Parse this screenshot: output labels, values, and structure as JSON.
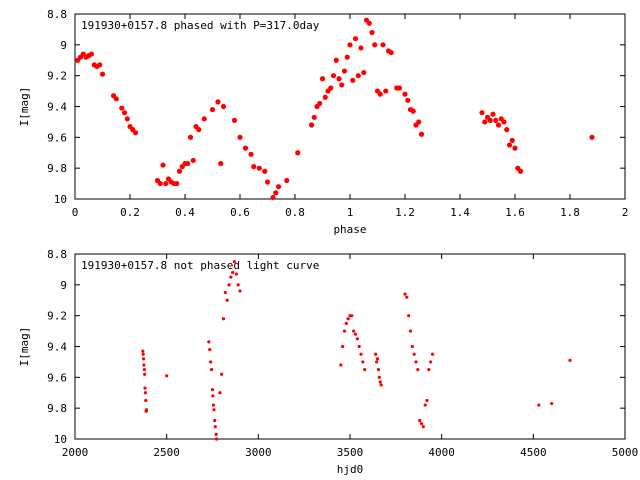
{
  "chart_data": [
    {
      "type": "scatter",
      "title": "191930+0157.8 phased with P=317.0day",
      "xlabel": "phase",
      "ylabel": "I[mag]",
      "xlim": [
        0,
        2
      ],
      "ylim": [
        8.8,
        10
      ],
      "y_inverted": true,
      "grid": false,
      "x_ticks": [
        "0",
        "0.2",
        "0.4",
        "0.6",
        "0.8",
        "1",
        "1.2",
        "1.4",
        "1.6",
        "1.8",
        "2"
      ],
      "y_ticks": [
        "8.8",
        "9",
        "9.2",
        "9.4",
        "9.6",
        "9.8",
        "10"
      ],
      "marker_color": "#ff0000",
      "series": [
        {
          "points": [
            [
              0.01,
              9.1
            ],
            [
              0.02,
              9.08
            ],
            [
              0.03,
              9.06
            ],
            [
              0.04,
              9.08
            ],
            [
              0.05,
              9.07
            ],
            [
              0.06,
              9.06
            ],
            [
              0.07,
              9.13
            ],
            [
              0.08,
              9.14
            ],
            [
              0.09,
              9.13
            ],
            [
              0.1,
              9.19
            ],
            [
              0.14,
              9.33
            ],
            [
              0.15,
              9.35
            ],
            [
              0.17,
              9.41
            ],
            [
              0.18,
              9.44
            ],
            [
              0.19,
              9.48
            ],
            [
              0.2,
              9.53
            ],
            [
              0.21,
              9.55
            ],
            [
              0.22,
              9.57
            ],
            [
              0.3,
              9.88
            ],
            [
              0.31,
              9.9
            ],
            [
              0.32,
              9.78
            ],
            [
              0.33,
              9.9
            ],
            [
              0.34,
              9.87
            ],
            [
              0.35,
              9.89
            ],
            [
              0.36,
              9.9
            ],
            [
              0.37,
              9.9
            ],
            [
              0.38,
              9.82
            ],
            [
              0.39,
              9.79
            ],
            [
              0.4,
              9.77
            ],
            [
              0.41,
              9.77
            ],
            [
              0.42,
              9.6
            ],
            [
              0.43,
              9.75
            ],
            [
              0.44,
              9.53
            ],
            [
              0.45,
              9.55
            ],
            [
              0.47,
              9.48
            ],
            [
              0.5,
              9.42
            ],
            [
              0.52,
              9.37
            ],
            [
              0.53,
              9.77
            ],
            [
              0.54,
              9.4
            ],
            [
              0.58,
              9.49
            ],
            [
              0.6,
              9.6
            ],
            [
              0.62,
              9.67
            ],
            [
              0.64,
              9.71
            ],
            [
              0.65,
              9.79
            ],
            [
              0.67,
              9.8
            ],
            [
              0.69,
              9.82
            ],
            [
              0.7,
              9.89
            ],
            [
              0.72,
              9.99
            ],
            [
              0.73,
              9.96
            ],
            [
              0.74,
              9.92
            ],
            [
              0.77,
              9.88
            ],
            [
              0.81,
              9.7
            ],
            [
              0.86,
              9.52
            ],
            [
              0.87,
              9.47
            ],
            [
              0.88,
              9.4
            ],
            [
              0.89,
              9.38
            ],
            [
              0.9,
              9.22
            ],
            [
              0.91,
              9.34
            ],
            [
              0.92,
              9.3
            ],
            [
              0.93,
              9.28
            ],
            [
              0.94,
              9.2
            ],
            [
              0.95,
              9.1
            ],
            [
              0.96,
              9.22
            ],
            [
              0.97,
              9.26
            ],
            [
              0.98,
              9.17
            ],
            [
              0.99,
              9.08
            ],
            [
              1.0,
              9.0
            ],
            [
              1.01,
              9.23
            ],
            [
              1.02,
              8.96
            ],
            [
              1.03,
              9.2
            ],
            [
              1.04,
              9.02
            ],
            [
              1.05,
              9.18
            ],
            [
              1.06,
              8.84
            ],
            [
              1.07,
              8.86
            ],
            [
              1.08,
              8.92
            ],
            [
              1.09,
              9.0
            ],
            [
              1.1,
              9.3
            ],
            [
              1.11,
              9.32
            ],
            [
              1.12,
              9.0
            ],
            [
              1.13,
              9.3
            ],
            [
              1.14,
              9.04
            ],
            [
              1.15,
              9.05
            ],
            [
              1.17,
              9.28
            ],
            [
              1.18,
              9.28
            ],
            [
              1.2,
              9.32
            ],
            [
              1.21,
              9.36
            ],
            [
              1.22,
              9.42
            ],
            [
              1.23,
              9.43
            ],
            [
              1.24,
              9.52
            ],
            [
              1.25,
              9.5
            ],
            [
              1.26,
              9.58
            ],
            [
              1.48,
              9.44
            ],
            [
              1.49,
              9.5
            ],
            [
              1.5,
              9.47
            ],
            [
              1.51,
              9.49
            ],
            [
              1.52,
              9.45
            ],
            [
              1.53,
              9.49
            ],
            [
              1.54,
              9.52
            ],
            [
              1.55,
              9.48
            ],
            [
              1.56,
              9.5
            ],
            [
              1.57,
              9.55
            ],
            [
              1.58,
              9.65
            ],
            [
              1.59,
              9.62
            ],
            [
              1.6,
              9.67
            ],
            [
              1.61,
              9.8
            ],
            [
              1.62,
              9.82
            ],
            [
              1.88,
              9.6
            ]
          ]
        }
      ]
    },
    {
      "type": "scatter",
      "title": "191930+0157.8 not phased light curve",
      "xlabel": "hjd0",
      "ylabel": "I[mag]",
      "xlim": [
        2000,
        5000
      ],
      "ylim": [
        8.8,
        10
      ],
      "y_inverted": true,
      "grid": false,
      "x_ticks": [
        "2000",
        "2500",
        "3000",
        "3500",
        "4000",
        "4500",
        "5000"
      ],
      "y_ticks": [
        "8.8",
        "9",
        "9.2",
        "9.4",
        "9.6",
        "9.8",
        "10"
      ],
      "marker_color": "#ff0000",
      "series": [
        {
          "points": [
            [
              2370,
              9.43
            ],
            [
              2372,
              9.45
            ],
            [
              2374,
              9.48
            ],
            [
              2376,
              9.52
            ],
            [
              2378,
              9.55
            ],
            [
              2380,
              9.58
            ],
            [
              2382,
              9.67
            ],
            [
              2384,
              9.7
            ],
            [
              2386,
              9.75
            ],
            [
              2388,
              9.82
            ],
            [
              2390,
              9.81
            ],
            [
              2500,
              9.59
            ],
            [
              2730,
              9.37
            ],
            [
              2735,
              9.42
            ],
            [
              2740,
              9.5
            ],
            [
              2745,
              9.55
            ],
            [
              2750,
              9.68
            ],
            [
              2752,
              9.72
            ],
            [
              2755,
              9.78
            ],
            [
              2758,
              9.81
            ],
            [
              2762,
              9.88
            ],
            [
              2765,
              9.92
            ],
            [
              2770,
              9.97
            ],
            [
              2772,
              10.0
            ],
            [
              2790,
              9.7
            ],
            [
              2800,
              9.58
            ],
            [
              2810,
              9.22
            ],
            [
              2820,
              9.05
            ],
            [
              2830,
              9.1
            ],
            [
              2840,
              9.0
            ],
            [
              2850,
              8.95
            ],
            [
              2860,
              8.92
            ],
            [
              2870,
              8.85
            ],
            [
              2880,
              8.93
            ],
            [
              2890,
              9.0
            ],
            [
              2900,
              9.04
            ],
            [
              3450,
              9.52
            ],
            [
              3460,
              9.4
            ],
            [
              3470,
              9.3
            ],
            [
              3480,
              9.25
            ],
            [
              3490,
              9.22
            ],
            [
              3500,
              9.2
            ],
            [
              3510,
              9.2
            ],
            [
              3520,
              9.3
            ],
            [
              3530,
              9.32
            ],
            [
              3540,
              9.35
            ],
            [
              3550,
              9.4
            ],
            [
              3560,
              9.45
            ],
            [
              3570,
              9.5
            ],
            [
              3580,
              9.55
            ],
            [
              3640,
              9.45
            ],
            [
              3645,
              9.5
            ],
            [
              3650,
              9.48
            ],
            [
              3655,
              9.55
            ],
            [
              3660,
              9.6
            ],
            [
              3665,
              9.63
            ],
            [
              3670,
              9.65
            ],
            [
              3800,
              9.06
            ],
            [
              3810,
              9.08
            ],
            [
              3820,
              9.2
            ],
            [
              3830,
              9.3
            ],
            [
              3840,
              9.4
            ],
            [
              3850,
              9.45
            ],
            [
              3860,
              9.5
            ],
            [
              3870,
              9.55
            ],
            [
              3880,
              9.88
            ],
            [
              3890,
              9.9
            ],
            [
              3900,
              9.92
            ],
            [
              3910,
              9.78
            ],
            [
              3920,
              9.75
            ],
            [
              3930,
              9.55
            ],
            [
              3940,
              9.5
            ],
            [
              3950,
              9.45
            ],
            [
              4530,
              9.78
            ],
            [
              4600,
              9.77
            ],
            [
              4700,
              9.49
            ]
          ]
        }
      ]
    }
  ]
}
